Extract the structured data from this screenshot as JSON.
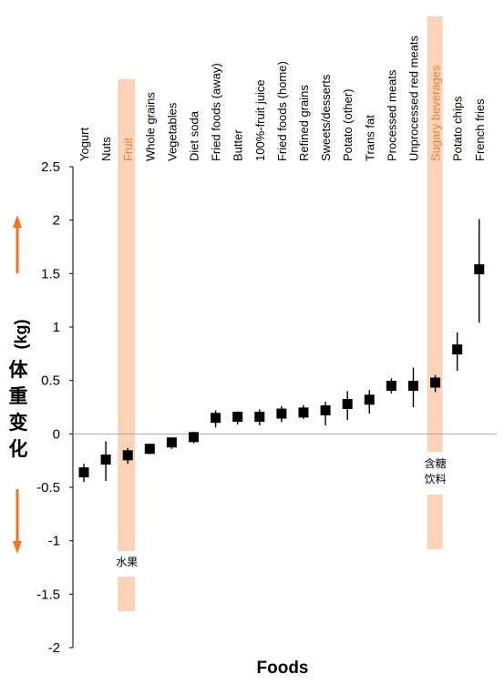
{
  "chart_data": {
    "type": "scatter",
    "xlabel": "Foods",
    "ylabel_unit": "(kg)",
    "ylabel_cjk": [
      "体",
      "重",
      "变",
      "化"
    ],
    "ylim": [
      -2,
      2.5
    ],
    "yticks": [
      -2,
      -1.5,
      -1,
      -0.5,
      0,
      0.5,
      1,
      1.5,
      2,
      2.5
    ],
    "ytick_labels": [
      "-2",
      "-1.5",
      "-1",
      "-0.5",
      "0",
      "0.5",
      "1",
      "1.5",
      "2",
      "2.5"
    ],
    "categories": [
      "Yogurt",
      "Nuts",
      "Fruit",
      "Whole grains",
      "Vegetables",
      "Diet soda",
      "Fried foods (away)",
      "Butter",
      "100%-fruit juice",
      "Fried foods (home)",
      "Refined grains",
      "Sweets/desserts",
      "Potato (other)",
      "Trans fat",
      "Processed meats",
      "Unprocessed red meats",
      "Sugary beverages",
      "Potato chips",
      "French fries"
    ],
    "values": [
      -0.36,
      -0.24,
      -0.2,
      -0.14,
      -0.08,
      -0.03,
      0.15,
      0.16,
      0.16,
      0.19,
      0.2,
      0.22,
      0.28,
      0.32,
      0.45,
      0.45,
      0.48,
      0.79,
      1.54
    ],
    "error_low": [
      -0.45,
      -0.44,
      -0.28,
      -0.19,
      -0.14,
      -0.09,
      0.06,
      0.09,
      0.08,
      0.11,
      0.14,
      0.08,
      0.13,
      0.19,
      0.38,
      0.25,
      0.39,
      0.59,
      1.04
    ],
    "error_high": [
      -0.28,
      -0.07,
      -0.13,
      -0.09,
      -0.04,
      0.02,
      0.22,
      0.21,
      0.23,
      0.26,
      0.27,
      0.3,
      0.4,
      0.41,
      0.52,
      0.62,
      0.55,
      0.95,
      2.01
    ],
    "grid": false,
    "highlighted_categories": [
      "Fruit",
      "Sugary beverages"
    ],
    "annotations": [
      {
        "target": "Fruit",
        "text": "水果"
      },
      {
        "target": "Sugary beverages",
        "text_lines": [
          "含糖",
          "饮料"
        ]
      }
    ],
    "arrows": [
      "up",
      "down"
    ],
    "colors": {
      "marker": "#000000",
      "highlight_band": "#fbd3b8",
      "highlight_label": "#e0823f",
      "arrow": "#ee7623",
      "axis": "#000000",
      "zero_line": "#a6a6a6"
    }
  }
}
